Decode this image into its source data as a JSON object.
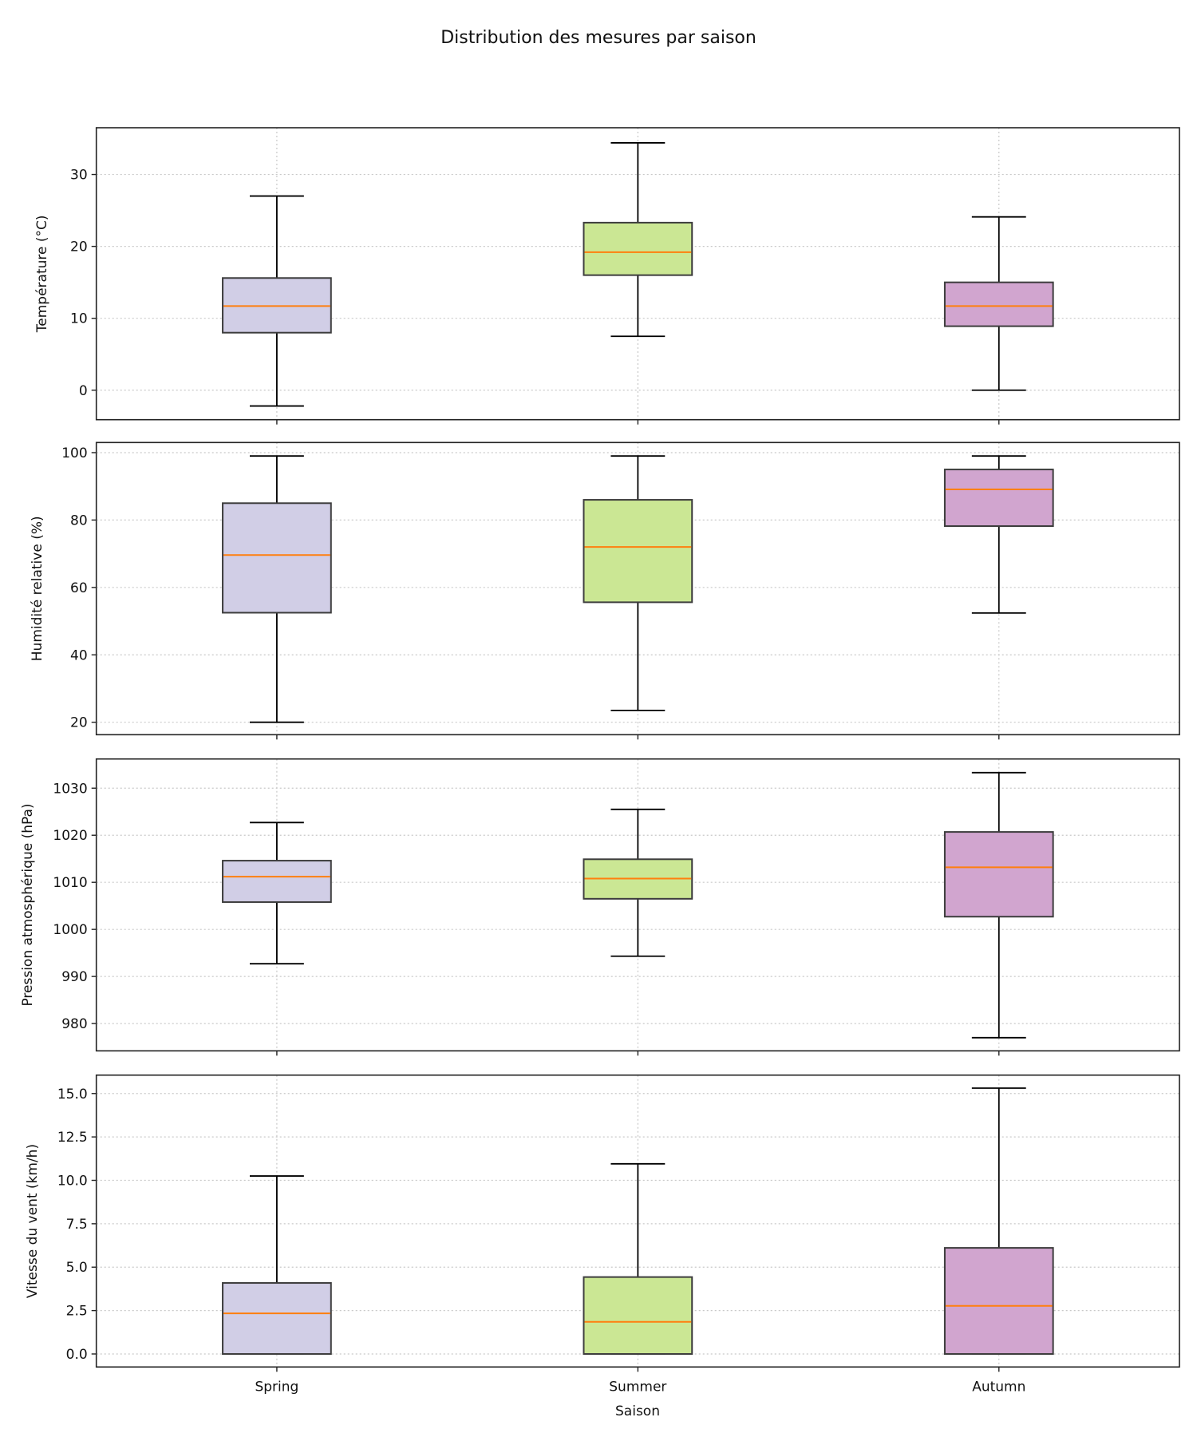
{
  "chart_data": {
    "type": "boxplot",
    "title": "Distribution des mesures par saison",
    "xlabel": "Saison",
    "categories": [
      "Spring",
      "Summer",
      "Autumn"
    ],
    "colors": [
      "#d1cee6",
      "#cbe794",
      "#d1a5cf"
    ],
    "median_color": "#ff7f0e",
    "grid": true,
    "panels": [
      {
        "ylabel": "Température (°C)",
        "ylim": [
          -4.1,
          36.5
        ],
        "yticks": [
          0,
          10,
          20,
          30
        ],
        "ytick_labels": [
          "0",
          "10",
          "20",
          "30"
        ],
        "boxes": [
          {
            "category": "Spring",
            "whisker_low": -2.2,
            "q1": 8.0,
            "median": 11.7,
            "q3": 15.6,
            "whisker_high": 27.0
          },
          {
            "category": "Summer",
            "whisker_low": 7.5,
            "q1": 16.0,
            "median": 19.2,
            "q3": 23.3,
            "whisker_high": 34.4
          },
          {
            "category": "Autumn",
            "whisker_low": 0.0,
            "q1": 8.9,
            "median": 11.7,
            "q3": 15.0,
            "whisker_high": 24.1
          }
        ]
      },
      {
        "ylabel": "Humidité relative (%)",
        "ylim": [
          16.3,
          103.0
        ],
        "yticks": [
          20,
          40,
          60,
          80,
          100
        ],
        "ytick_labels": [
          "20",
          "40",
          "60",
          "80",
          "100"
        ],
        "boxes": [
          {
            "category": "Spring",
            "whisker_low": 20.0,
            "q1": 52.5,
            "median": 69.6,
            "q3": 85.0,
            "whisker_high": 99.0
          },
          {
            "category": "Summer",
            "whisker_low": 23.5,
            "q1": 55.6,
            "median": 72.0,
            "q3": 86.0,
            "whisker_high": 99.0
          },
          {
            "category": "Autumn",
            "whisker_low": 52.4,
            "q1": 78.2,
            "median": 89.1,
            "q3": 95.0,
            "whisker_high": 99.0
          }
        ]
      },
      {
        "ylabel": "Pression atmosphérique (hPa)",
        "ylim": [
          974.2,
          1036.2
        ],
        "yticks": [
          980,
          990,
          1000,
          1010,
          1020,
          1030
        ],
        "ytick_labels": [
          "980",
          "990",
          "1000",
          "1010",
          "1020",
          "1030"
        ],
        "boxes": [
          {
            "category": "Spring",
            "whisker_low": 992.7,
            "q1": 1005.8,
            "median": 1011.2,
            "q3": 1014.6,
            "whisker_high": 1022.7
          },
          {
            "category": "Summer",
            "whisker_low": 994.3,
            "q1": 1006.5,
            "median": 1010.8,
            "q3": 1014.9,
            "whisker_high": 1025.5
          },
          {
            "category": "Autumn",
            "whisker_low": 977.0,
            "q1": 1002.7,
            "median": 1013.2,
            "q3": 1020.7,
            "whisker_high": 1033.3
          }
        ]
      },
      {
        "ylabel": "Vitesse du vent (km/h)",
        "ylim": [
          -0.75,
          16.06
        ],
        "yticks": [
          0,
          2.5,
          5,
          7.5,
          10,
          12.5,
          15
        ],
        "ytick_labels": [
          "0.0",
          "2.5",
          "5.0",
          "7.5",
          "10.0",
          "12.5",
          "15.0"
        ],
        "boxes": [
          {
            "category": "Spring",
            "whisker_low": 0.0,
            "q1": 0.0,
            "median": 2.34,
            "q3": 4.09,
            "whisker_high": 10.25
          },
          {
            "category": "Summer",
            "whisker_low": 0.0,
            "q1": 0.0,
            "median": 1.85,
            "q3": 4.43,
            "whisker_high": 10.95
          },
          {
            "category": "Autumn",
            "whisker_low": 0.0,
            "q1": 0.0,
            "median": 2.77,
            "q3": 6.11,
            "whisker_high": 15.31
          }
        ]
      }
    ]
  }
}
